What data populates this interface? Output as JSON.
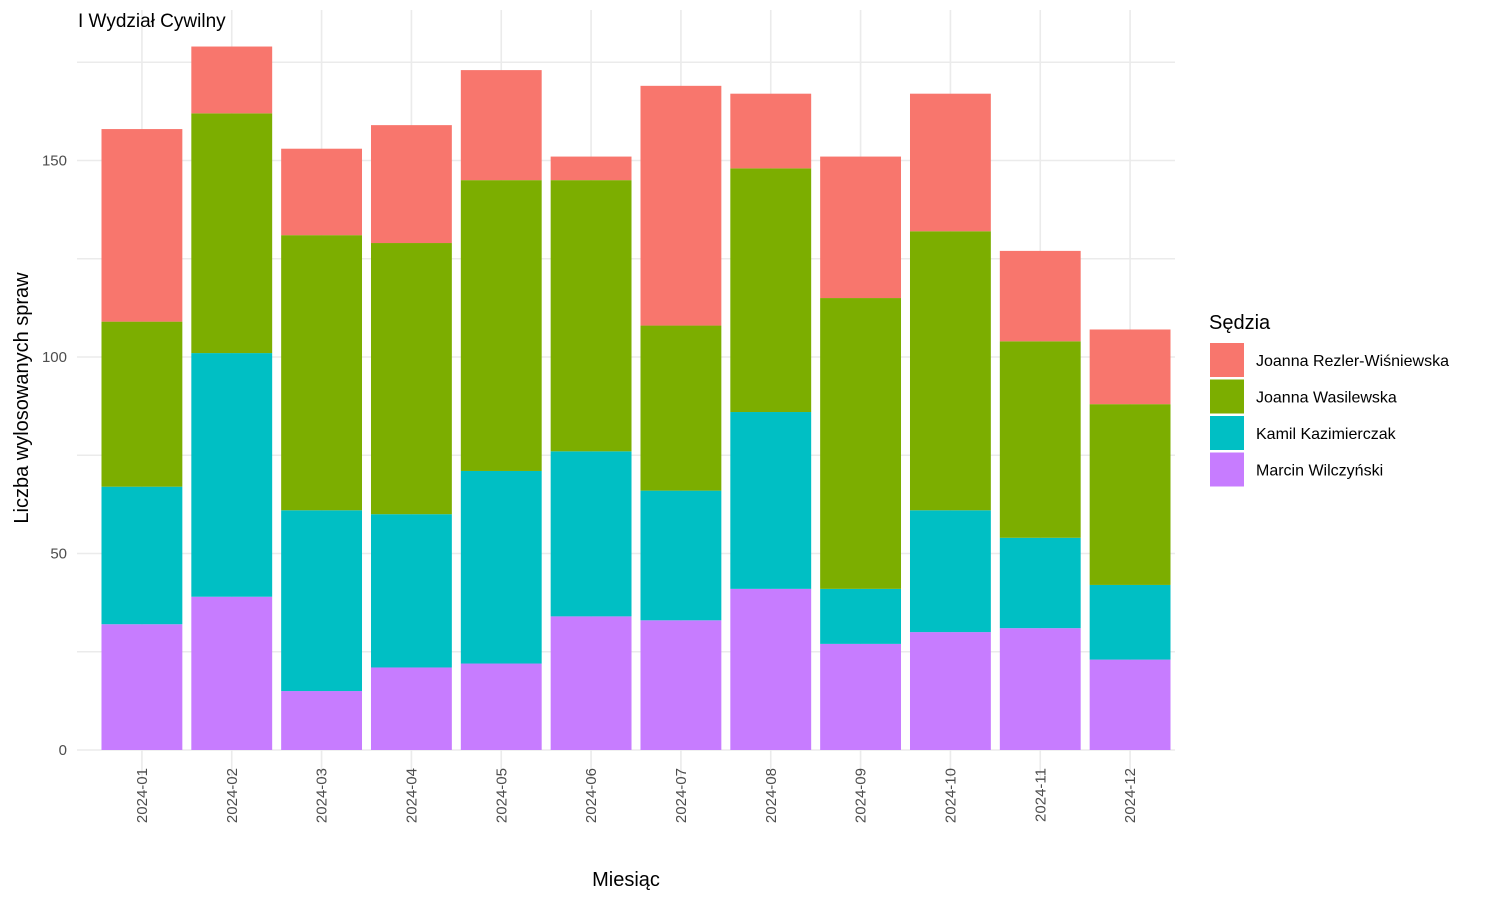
{
  "chart_data": {
    "type": "bar",
    "stacked": true,
    "title": "I Wydział Cywilny",
    "xlabel": "Miesiąc",
    "ylabel": "Liczba wylosowanych spraw",
    "ylim": [
      0,
      180
    ],
    "yticks": [
      0,
      50,
      100,
      150
    ],
    "grid": true,
    "legend_title": "Sędzia",
    "legend_position": "right",
    "categories": [
      "2024-01",
      "2024-02",
      "2024-03",
      "2024-04",
      "2024-05",
      "2024-06",
      "2024-07",
      "2024-08",
      "2024-09",
      "2024-10",
      "2024-11",
      "2024-12"
    ],
    "series": [
      {
        "name": "Joanna Rezler-Wiśniewska",
        "color": "#F8766D",
        "values": [
          49,
          17,
          22,
          30,
          28,
          6,
          61,
          19,
          36,
          35,
          23,
          19
        ]
      },
      {
        "name": "Joanna Wasilewska",
        "color": "#7CAE00",
        "values": [
          42,
          61,
          70,
          69,
          74,
          69,
          42,
          62,
          74,
          71,
          50,
          46
        ]
      },
      {
        "name": "Kamil Kazimierczak",
        "color": "#00BFC4",
        "values": [
          35,
          62,
          46,
          39,
          49,
          42,
          33,
          45,
          14,
          31,
          23,
          19
        ]
      },
      {
        "name": "Marcin Wilczyński",
        "color": "#C77CFF",
        "values": [
          32,
          39,
          15,
          21,
          22,
          34,
          33,
          41,
          27,
          30,
          31,
          23
        ]
      }
    ]
  }
}
